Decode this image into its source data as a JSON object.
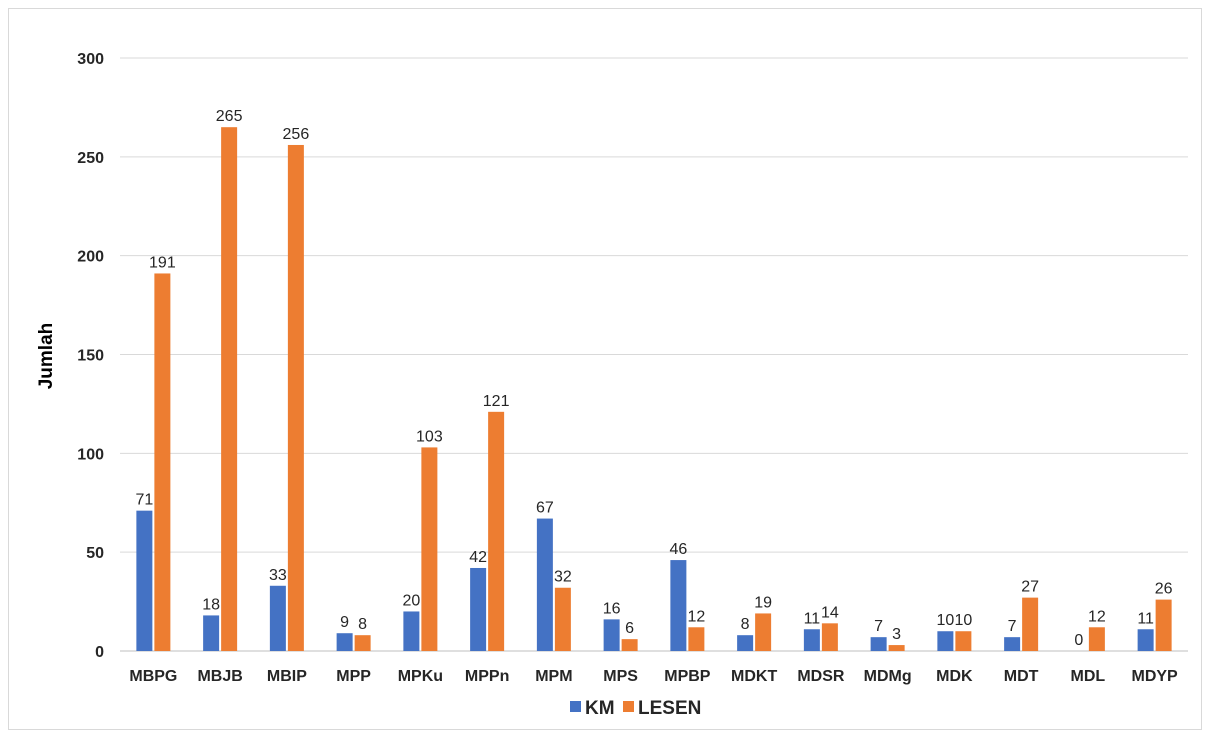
{
  "chart_data": {
    "type": "bar",
    "title": "",
    "xlabel": "",
    "ylabel": "Jumlah",
    "ylim": [
      0,
      300
    ],
    "yticks": [
      0,
      50,
      100,
      150,
      200,
      250,
      300
    ],
    "grid": true,
    "legend_position": "bottom",
    "categories": [
      "MBPG",
      "MBJB",
      "MBIP",
      "MPP",
      "MPKu",
      "MPPn",
      "MPM",
      "MPS",
      "MPBP",
      "MDKT",
      "MDSR",
      "MDMg",
      "MDK",
      "MDT",
      "MDL",
      "MDYP"
    ],
    "series": [
      {
        "name": "KM",
        "color": "#4472c4",
        "values": [
          71,
          18,
          33,
          9,
          20,
          42,
          67,
          16,
          46,
          8,
          11,
          7,
          10,
          7,
          0,
          11
        ]
      },
      {
        "name": "LESEN",
        "color": "#ed7d31",
        "values": [
          191,
          265,
          256,
          8,
          103,
          121,
          32,
          6,
          12,
          19,
          14,
          3,
          10,
          27,
          12,
          26
        ]
      }
    ]
  }
}
